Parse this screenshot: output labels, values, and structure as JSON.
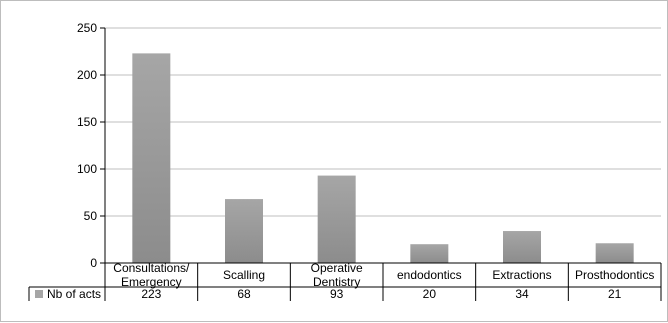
{
  "chart_data": {
    "type": "bar",
    "categories": [
      [
        "Consultations/",
        "Emergency"
      ],
      [
        "Scalling"
      ],
      [
        "Operative",
        "Dentistry"
      ],
      [
        "endodontics"
      ],
      [
        "Extractions"
      ],
      [
        "Prosthodontics"
      ]
    ],
    "series": [
      {
        "name": "Nb of acts",
        "values": [
          223,
          68,
          93,
          20,
          34,
          21
        ]
      }
    ],
    "ylim": [
      0,
      250
    ],
    "yticks": [
      0,
      50,
      100,
      150,
      200,
      250
    ],
    "grid": true,
    "legend": "data-table",
    "colors": {
      "bar": "#a6a6a6",
      "bar_dark": "#8c8c8c",
      "grid": "#bfbfbf",
      "axis": "#000000"
    }
  }
}
